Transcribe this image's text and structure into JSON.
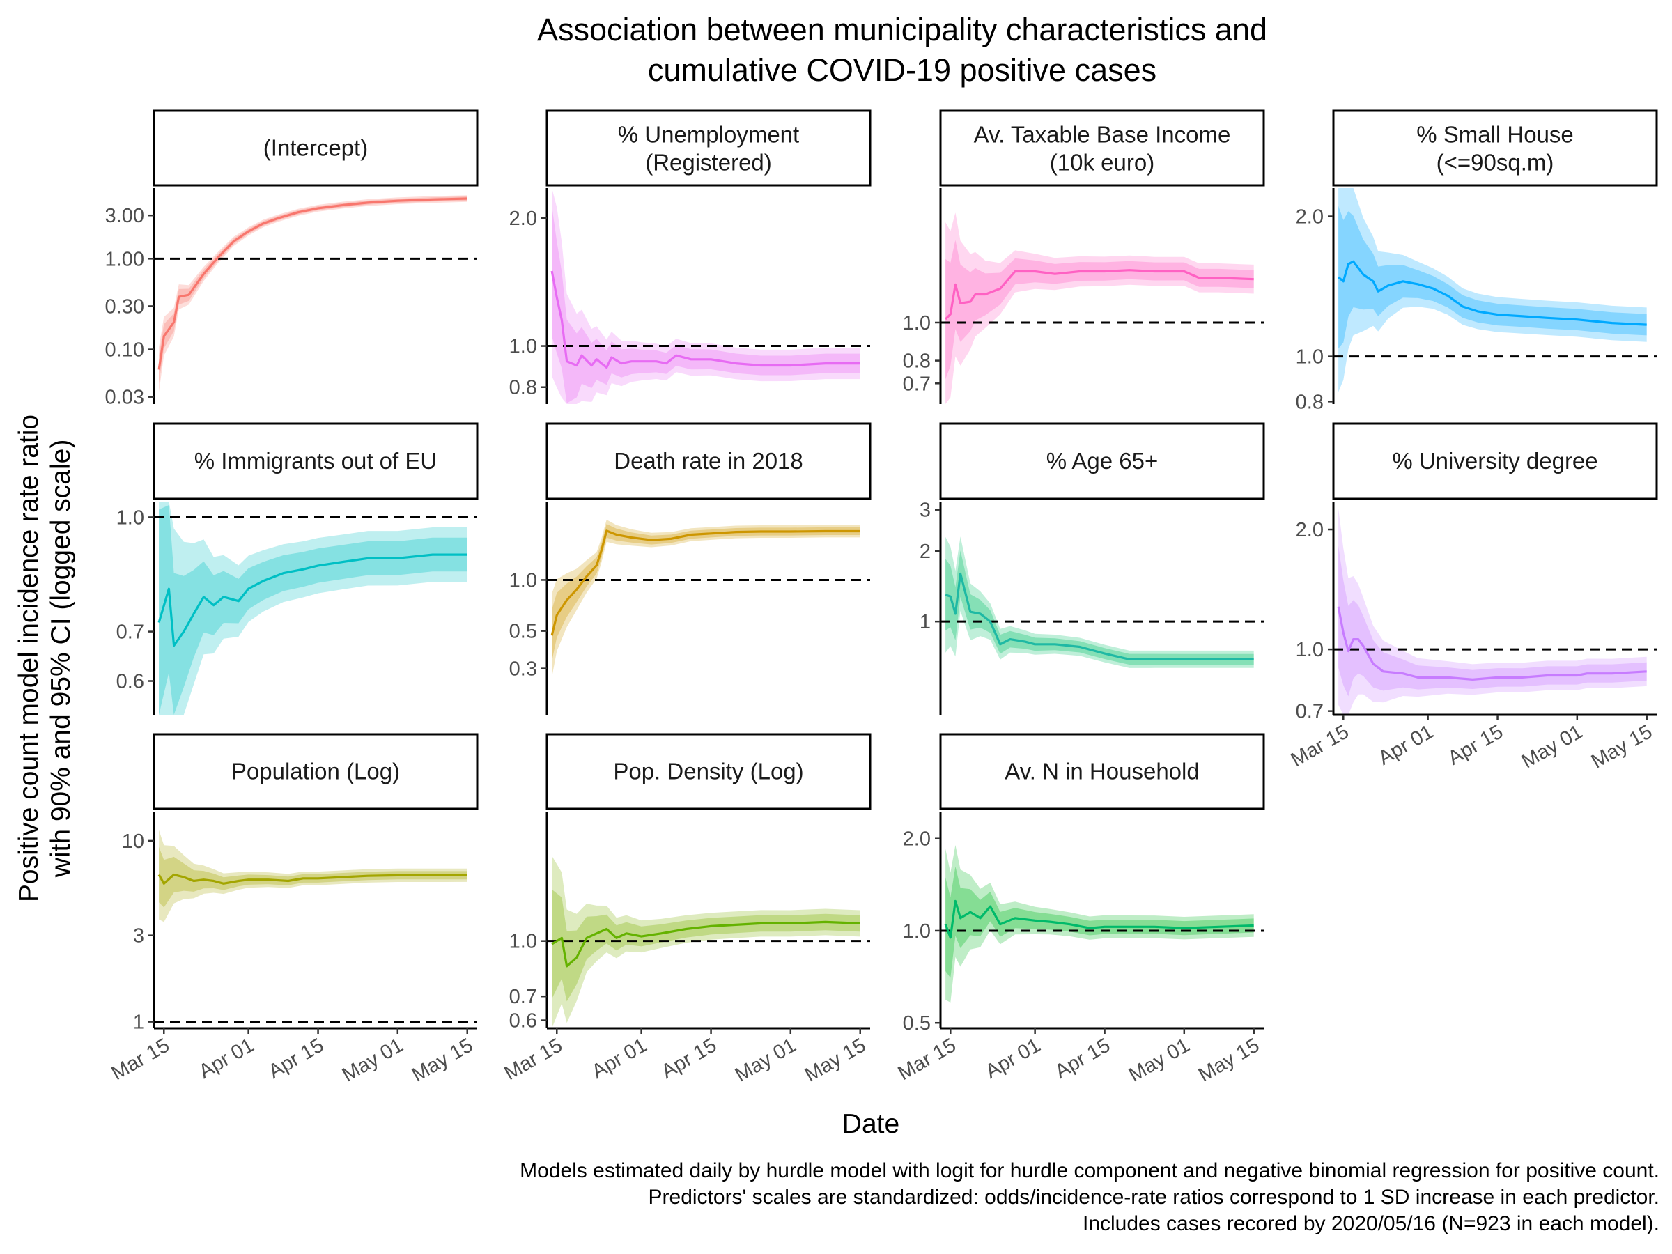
{
  "chart_data": {
    "type": "line",
    "title": [
      "Association between municipality characteristics and",
      "cumulative COVID-19 positive cases"
    ],
    "xlabel": "Date",
    "ylabel": [
      "Positive count model incidence rate ratio",
      "with 90% and 95% CI (logged scale)"
    ],
    "caption": [
      "Models estimated daily by hurdle model with logit for hurdle component and negative binomial regression for positive count.",
      "Predictors' scales are standardized: odds/incidence-rate ratios correspond to 1 SD increase in each predictor.",
      "Includes cases recored by 2020/05/16 (N=923 in each model)."
    ],
    "x_ticks": [
      "Mar 15",
      "Apr 01",
      "Apr 15",
      "May 01",
      "May 15"
    ],
    "x_range": [
      "2020-03-13",
      "2020-05-17"
    ],
    "y_scale": "log",
    "reference_line": 1,
    "panels": [
      {
        "name": [
          "(Intercept)"
        ],
        "color": "#F8766D",
        "ylim": [
          0.025,
          6
        ],
        "yticks": [
          0.03,
          0.1,
          0.3,
          1,
          3
        ],
        "ytick_labels": [
          "0.03",
          "0.10",
          "0.30",
          "1.00",
          "3.00"
        ],
        "series": [
          [
            "03-14",
            0.06
          ],
          [
            "03-15",
            0.14
          ],
          [
            "03-17",
            0.2
          ],
          [
            "03-18",
            0.38
          ],
          [
            "03-20",
            0.4
          ],
          [
            "03-23",
            0.68
          ],
          [
            "03-26",
            1.05
          ],
          [
            "03-29",
            1.55
          ],
          [
            "04-01",
            2.0
          ],
          [
            "04-04",
            2.45
          ],
          [
            "04-07",
            2.8
          ],
          [
            "04-11",
            3.25
          ],
          [
            "04-15",
            3.6
          ],
          [
            "04-20",
            3.9
          ],
          [
            "04-25",
            4.15
          ],
          [
            "05-01",
            4.35
          ],
          [
            "05-08",
            4.5
          ],
          [
            "05-15",
            4.6
          ]
        ]
      },
      {
        "name": [
          "% Unemployment",
          "(Registered)"
        ],
        "color": "#E76BF3",
        "ylim": [
          0.73,
          2.35
        ],
        "yticks": [
          0.8,
          1.0,
          2.0
        ],
        "ytick_labels": [
          "0.8",
          "1.0",
          "2.0"
        ],
        "series": [
          [
            "03-14",
            1.5
          ],
          [
            "03-15",
            1.3
          ],
          [
            "03-16",
            1.15
          ],
          [
            "03-17",
            0.92
          ],
          [
            "03-19",
            0.9
          ],
          [
            "03-20",
            0.95
          ],
          [
            "03-22",
            0.9
          ],
          [
            "03-23",
            0.93
          ],
          [
            "03-25",
            0.89
          ],
          [
            "03-26",
            0.94
          ],
          [
            "03-28",
            0.91
          ],
          [
            "03-30",
            0.92
          ],
          [
            "04-01",
            0.92
          ],
          [
            "04-04",
            0.92
          ],
          [
            "04-06",
            0.91
          ],
          [
            "04-08",
            0.95
          ],
          [
            "04-11",
            0.93
          ],
          [
            "04-15",
            0.93
          ],
          [
            "04-20",
            0.91
          ],
          [
            "04-25",
            0.9
          ],
          [
            "05-01",
            0.9
          ],
          [
            "05-08",
            0.91
          ],
          [
            "05-15",
            0.91
          ]
        ]
      },
      {
        "name": [
          "Av. Taxable Base Income",
          "(10k euro)"
        ],
        "color": "#FF61C3",
        "ylim": [
          0.62,
          2.2
        ],
        "yticks": [
          0.7,
          0.8,
          1.0
        ],
        "ytick_labels": [
          "0.7",
          "0.8",
          "1.0"
        ],
        "series": [
          [
            "03-14",
            1.02
          ],
          [
            "03-15",
            1.05
          ],
          [
            "03-16",
            1.25
          ],
          [
            "03-17",
            1.12
          ],
          [
            "03-19",
            1.13
          ],
          [
            "03-20",
            1.18
          ],
          [
            "03-22",
            1.18
          ],
          [
            "03-25",
            1.22
          ],
          [
            "03-28",
            1.35
          ],
          [
            "04-01",
            1.35
          ],
          [
            "04-05",
            1.33
          ],
          [
            "04-10",
            1.35
          ],
          [
            "04-15",
            1.35
          ],
          [
            "04-20",
            1.36
          ],
          [
            "04-25",
            1.35
          ],
          [
            "05-01",
            1.35
          ],
          [
            "05-04",
            1.3
          ],
          [
            "05-08",
            1.3
          ],
          [
            "05-15",
            1.29
          ]
        ]
      },
      {
        "name": [
          "% Small House",
          "(<=90sq.m)"
        ],
        "color": "#00A9FF",
        "ylim": [
          0.79,
          2.3
        ],
        "yticks": [
          0.8,
          1.0,
          2.0
        ],
        "ytick_labels": [
          "0.8",
          "1.0",
          "2.0"
        ],
        "series": [
          [
            "03-14",
            1.48
          ],
          [
            "03-15",
            1.45
          ],
          [
            "03-16",
            1.58
          ],
          [
            "03-17",
            1.6
          ],
          [
            "03-19",
            1.5
          ],
          [
            "03-21",
            1.45
          ],
          [
            "03-22",
            1.38
          ],
          [
            "03-24",
            1.42
          ],
          [
            "03-27",
            1.45
          ],
          [
            "03-30",
            1.43
          ],
          [
            "04-02",
            1.4
          ],
          [
            "04-05",
            1.35
          ],
          [
            "04-08",
            1.28
          ],
          [
            "04-11",
            1.25
          ],
          [
            "04-15",
            1.23
          ],
          [
            "04-20",
            1.22
          ],
          [
            "04-25",
            1.21
          ],
          [
            "05-01",
            1.2
          ],
          [
            "05-08",
            1.18
          ],
          [
            "05-15",
            1.17
          ]
        ]
      },
      {
        "name": [
          "% Immigrants out of EU"
        ],
        "color": "#00BFC4",
        "ylim": [
          0.54,
          1.05
        ],
        "yticks": [
          0.6,
          0.7,
          1.0
        ],
        "ytick_labels": [
          "0.6",
          "0.7",
          "1.0"
        ],
        "series": [
          [
            "03-14",
            0.72
          ],
          [
            "03-16",
            0.8
          ],
          [
            "03-17",
            0.67
          ],
          [
            "03-19",
            0.7
          ],
          [
            "03-21",
            0.74
          ],
          [
            "03-23",
            0.78
          ],
          [
            "03-25",
            0.76
          ],
          [
            "03-27",
            0.78
          ],
          [
            "03-30",
            0.77
          ],
          [
            "04-01",
            0.8
          ],
          [
            "04-04",
            0.82
          ],
          [
            "04-08",
            0.84
          ],
          [
            "04-12",
            0.85
          ],
          [
            "04-15",
            0.86
          ],
          [
            "04-20",
            0.87
          ],
          [
            "04-25",
            0.88
          ],
          [
            "05-01",
            0.88
          ],
          [
            "05-08",
            0.89
          ],
          [
            "05-15",
            0.89
          ]
        ]
      },
      {
        "name": [
          "Death rate in 2018"
        ],
        "color": "#CD9600",
        "ylim": [
          0.16,
          2.9
        ],
        "yticks": [
          0.3,
          0.5,
          1.0
        ],
        "ytick_labels": [
          "0.3",
          "0.5",
          "1.0"
        ],
        "series": [
          [
            "03-14",
            0.47
          ],
          [
            "03-15",
            0.62
          ],
          [
            "03-17",
            0.76
          ],
          [
            "03-19",
            0.88
          ],
          [
            "03-21",
            1.05
          ],
          [
            "03-23",
            1.22
          ],
          [
            "03-24",
            1.5
          ],
          [
            "03-25",
            1.95
          ],
          [
            "03-27",
            1.85
          ],
          [
            "03-30",
            1.78
          ],
          [
            "04-03",
            1.72
          ],
          [
            "04-07",
            1.75
          ],
          [
            "04-11",
            1.85
          ],
          [
            "04-15",
            1.88
          ],
          [
            "04-20",
            1.92
          ],
          [
            "04-25",
            1.93
          ],
          [
            "05-01",
            1.93
          ],
          [
            "05-08",
            1.94
          ],
          [
            "05-15",
            1.94
          ]
        ]
      },
      {
        "name": [
          "% Age 65+"
        ],
        "color": "#00BE67",
        "lineColor": "#1FB9A4",
        "ylim": [
          0.4,
          3.25
        ],
        "yticks": [
          1,
          2,
          3
        ],
        "ytick_labels": [
          "1",
          "2",
          "3"
        ],
        "series": [
          [
            "03-14",
            1.3
          ],
          [
            "03-15",
            1.28
          ],
          [
            "03-16",
            1.08
          ],
          [
            "03-17",
            1.6
          ],
          [
            "03-19",
            1.1
          ],
          [
            "03-21",
            1.08
          ],
          [
            "03-23",
            1.0
          ],
          [
            "03-25",
            0.8
          ],
          [
            "03-27",
            0.84
          ],
          [
            "03-30",
            0.82
          ],
          [
            "04-01",
            0.8
          ],
          [
            "04-05",
            0.8
          ],
          [
            "04-10",
            0.78
          ],
          [
            "04-15",
            0.73
          ],
          [
            "04-20",
            0.69
          ],
          [
            "04-25",
            0.69
          ],
          [
            "05-01",
            0.69
          ],
          [
            "05-08",
            0.69
          ],
          [
            "05-15",
            0.69
          ]
        ]
      },
      {
        "name": [
          "% University degree"
        ],
        "color": "#C77CFF",
        "ylim": [
          0.685,
          2.35
        ],
        "yticks": [
          0.7,
          1.0,
          2.0
        ],
        "ytick_labels": [
          "0.7",
          "1.0",
          "2.0"
        ],
        "series": [
          [
            "03-14",
            1.28
          ],
          [
            "03-15",
            1.1
          ],
          [
            "03-16",
            0.99
          ],
          [
            "03-17",
            1.06
          ],
          [
            "03-18",
            1.06
          ],
          [
            "03-19",
            1.02
          ],
          [
            "03-21",
            0.92
          ],
          [
            "03-23",
            0.88
          ],
          [
            "03-27",
            0.87
          ],
          [
            "03-30",
            0.85
          ],
          [
            "04-05",
            0.85
          ],
          [
            "04-10",
            0.84
          ],
          [
            "04-15",
            0.85
          ],
          [
            "04-20",
            0.85
          ],
          [
            "04-25",
            0.86
          ],
          [
            "05-01",
            0.86
          ],
          [
            "05-03",
            0.87
          ],
          [
            "05-08",
            0.87
          ],
          [
            "05-15",
            0.88
          ]
        ]
      },
      {
        "name": [
          "Population (Log)"
        ],
        "color": "#A3A500",
        "ylim": [
          0.92,
          14.5
        ],
        "yticks": [
          1,
          3,
          10
        ],
        "ytick_labels": [
          "1",
          "3",
          "10"
        ],
        "series": [
          [
            "03-14",
            6.5
          ],
          [
            "03-15",
            5.8
          ],
          [
            "03-17",
            6.5
          ],
          [
            "03-19",
            6.3
          ],
          [
            "03-21",
            6.0
          ],
          [
            "03-23",
            6.1
          ],
          [
            "03-25",
            6.0
          ],
          [
            "03-27",
            5.8
          ],
          [
            "03-30",
            6.0
          ],
          [
            "04-01",
            6.1
          ],
          [
            "04-05",
            6.1
          ],
          [
            "04-09",
            6.0
          ],
          [
            "04-12",
            6.2
          ],
          [
            "04-15",
            6.2
          ],
          [
            "04-20",
            6.3
          ],
          [
            "04-25",
            6.4
          ],
          [
            "05-01",
            6.45
          ],
          [
            "05-08",
            6.45
          ],
          [
            "05-15",
            6.45
          ]
        ]
      },
      {
        "name": [
          "Pop. Density (Log)"
        ],
        "color": "#7CAE00",
        "lineColor": "#64B200",
        "ylim": [
          0.57,
          2.3
        ],
        "yticks": [
          0.6,
          0.7,
          1.0
        ],
        "ytick_labels": [
          "0.6",
          "0.7",
          "1.0"
        ],
        "series": [
          [
            "03-14",
            0.98
          ],
          [
            "03-16",
            1.02
          ],
          [
            "03-17",
            0.85
          ],
          [
            "03-19",
            0.9
          ],
          [
            "03-21",
            1.02
          ],
          [
            "03-23",
            1.05
          ],
          [
            "03-25",
            1.08
          ],
          [
            "03-27",
            1.02
          ],
          [
            "03-29",
            1.05
          ],
          [
            "04-01",
            1.03
          ],
          [
            "04-05",
            1.05
          ],
          [
            "04-10",
            1.08
          ],
          [
            "04-15",
            1.1
          ],
          [
            "04-20",
            1.11
          ],
          [
            "04-25",
            1.12
          ],
          [
            "05-01",
            1.12
          ],
          [
            "05-08",
            1.13
          ],
          [
            "05-15",
            1.12
          ]
        ]
      },
      {
        "name": [
          "Av. N in Household"
        ],
        "color": "#00B81F",
        "lineColor": "#00BA6A",
        "ylim": [
          0.48,
          2.45
        ],
        "yticks": [
          0.5,
          1.0,
          2.0
        ],
        "ytick_labels": [
          "0.5",
          "1.0",
          "2.0"
        ],
        "series": [
          [
            "03-14",
            1.05
          ],
          [
            "03-15",
            0.95
          ],
          [
            "03-16",
            1.25
          ],
          [
            "03-17",
            1.1
          ],
          [
            "03-19",
            1.15
          ],
          [
            "03-21",
            1.1
          ],
          [
            "03-23",
            1.2
          ],
          [
            "03-25",
            1.05
          ],
          [
            "03-28",
            1.1
          ],
          [
            "04-01",
            1.08
          ],
          [
            "04-04",
            1.07
          ],
          [
            "04-08",
            1.05
          ],
          [
            "04-12",
            1.02
          ],
          [
            "04-15",
            1.03
          ],
          [
            "04-20",
            1.03
          ],
          [
            "04-25",
            1.03
          ],
          [
            "05-01",
            1.02
          ],
          [
            "05-08",
            1.03
          ],
          [
            "05-15",
            1.04
          ]
        ]
      }
    ]
  }
}
